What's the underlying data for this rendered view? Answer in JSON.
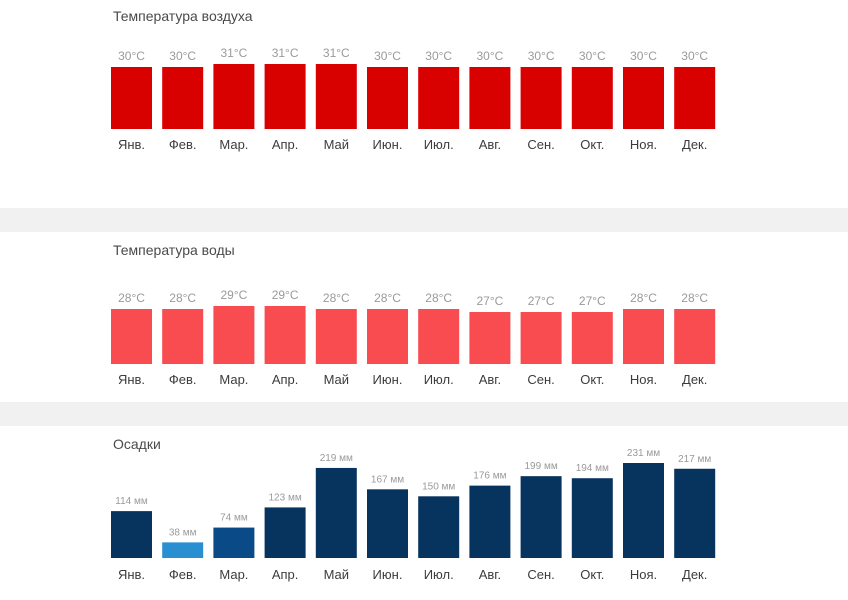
{
  "chart_data": [
    {
      "type": "bar",
      "title": "Температура воздуха",
      "categories": [
        "Янв.",
        "Фев.",
        "Мар.",
        "Апр.",
        "Май",
        "Июн.",
        "Июл.",
        "Авг.",
        "Сен.",
        "Окт.",
        "Ноя.",
        "Дек."
      ],
      "values": [
        30,
        30,
        31,
        31,
        31,
        30,
        30,
        30,
        30,
        30,
        30,
        30
      ],
      "value_labels": [
        "30°C",
        "30°C",
        "31°C",
        "31°C",
        "31°C",
        "30°C",
        "30°C",
        "30°C",
        "30°C",
        "30°C",
        "30°C",
        "30°C"
      ],
      "unit": "°C",
      "bar_color": "#d90000",
      "xlabel": "",
      "ylabel": ""
    },
    {
      "type": "bar",
      "title": "Температура воды",
      "categories": [
        "Янв.",
        "Фев.",
        "Мар.",
        "Апр.",
        "Май",
        "Июн.",
        "Июл.",
        "Авг.",
        "Сен.",
        "Окт.",
        "Ноя.",
        "Дек."
      ],
      "values": [
        28,
        28,
        29,
        29,
        28,
        28,
        28,
        27,
        27,
        27,
        28,
        28
      ],
      "value_labels": [
        "28°C",
        "28°C",
        "29°C",
        "29°C",
        "28°C",
        "28°C",
        "28°C",
        "27°C",
        "27°C",
        "27°C",
        "28°C",
        "28°C"
      ],
      "unit": "°C",
      "bar_color": "#f94c50",
      "xlabel": "",
      "ylabel": ""
    },
    {
      "type": "bar",
      "title": "Осадки",
      "categories": [
        "Янв.",
        "Фев.",
        "Мар.",
        "Апр.",
        "Май",
        "Июн.",
        "Июл.",
        "Авг.",
        "Сен.",
        "Окт.",
        "Ноя.",
        "Дек."
      ],
      "values": [
        114,
        38,
        74,
        123,
        219,
        167,
        150,
        176,
        199,
        194,
        231,
        217
      ],
      "value_labels": [
        "114 мм",
        "38 мм",
        "74 мм",
        "123 мм",
        "219 мм",
        "167 мм",
        "150 мм",
        "176 мм",
        "199 мм",
        "194 мм",
        "231 мм",
        "217 мм"
      ],
      "unit": "мм",
      "bar_colors": [
        "#07335f",
        "#2a8fd1",
        "#0a4a86",
        "#07335f",
        "#07335f",
        "#07335f",
        "#07335f",
        "#07335f",
        "#07335f",
        "#07335f",
        "#07335f",
        "#07335f"
      ],
      "ylim": [
        0,
        231
      ],
      "xlabel": "",
      "ylabel": ""
    }
  ]
}
